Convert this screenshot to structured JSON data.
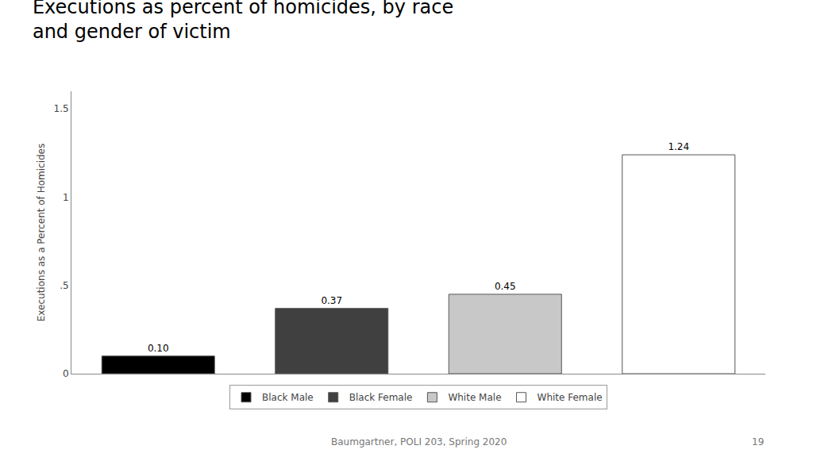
{
  "chart_data": {
    "type": "bar",
    "title": "Executions as percent of homicides, by race\nand gender of victim",
    "categories": [
      "Black Male",
      "Black Female",
      "White Male",
      "White Female"
    ],
    "values": [
      0.1,
      0.37,
      0.45,
      1.24
    ],
    "value_labels": [
      "0.10",
      "0.37",
      "0.45",
      "1.24"
    ],
    "data_labels": true,
    "colors": [
      "#000000",
      "#404040",
      "#c8c8c8",
      "#ffffff"
    ],
    "ylabel": "Executions as a Percent of Homicides",
    "ylim": [
      0,
      1.6
    ],
    "yticks": [
      0,
      {
        "value": 0.5,
        "label": ".5"
      },
      1,
      1.5
    ],
    "grid": false,
    "legend": "bottom",
    "tick_labels": "y",
    "annotations": [
      "Baumgartner, POLI 203, Spring 2020",
      "19"
    ]
  }
}
